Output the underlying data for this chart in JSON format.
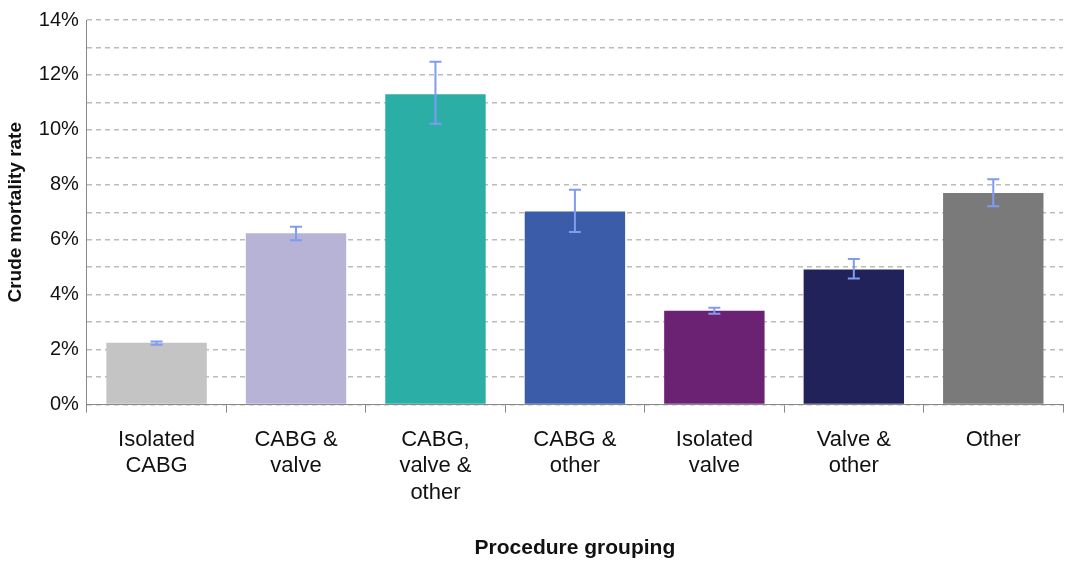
{
  "chart_data": {
    "type": "bar",
    "xlabel": "Procedure grouping",
    "ylabel": "Crude mortality rate",
    "categories": [
      "Isolated CABG",
      "CABG & valve",
      "CABG, valve & other",
      "CABG & other",
      "Isolated valve",
      "Valve & other",
      "Other"
    ],
    "values": [
      2.25,
      6.24,
      11.3,
      7.03,
      3.42,
      4.92,
      7.7
    ],
    "colors": [
      "#c4c4c4",
      "#b6b3d6",
      "#2aaea6",
      "#3b5ca8",
      "#6b2272",
      "#22225a",
      "#7a7a7a"
    ],
    "errors": [
      [
        2.18,
        2.3
      ],
      [
        5.98,
        6.47
      ],
      [
        10.22,
        12.48
      ],
      [
        6.28,
        7.82
      ],
      [
        3.31,
        3.53
      ],
      [
        4.59,
        5.3
      ],
      [
        7.22,
        8.2
      ]
    ],
    "ylim": [
      0,
      14
    ],
    "yticks": [
      {
        "value": 0,
        "label": "0%"
      },
      {
        "value": 1,
        "label": null
      },
      {
        "value": 2,
        "label": "2%"
      },
      {
        "value": 3,
        "label": null
      },
      {
        "value": 4,
        "label": "4%"
      },
      {
        "value": 5,
        "label": null
      },
      {
        "value": 6,
        "label": "6%"
      },
      {
        "value": 7,
        "label": null
      },
      {
        "value": 8,
        "label": "8%"
      },
      {
        "value": 9,
        "label": null
      },
      {
        "value": 10,
        "label": "10%"
      },
      {
        "value": 11,
        "label": null
      },
      {
        "value": 12,
        "label": "12%"
      },
      {
        "value": 13,
        "label": null
      },
      {
        "value": 14,
        "label": "14%"
      }
    ],
    "grid": "y",
    "legend": false
  }
}
